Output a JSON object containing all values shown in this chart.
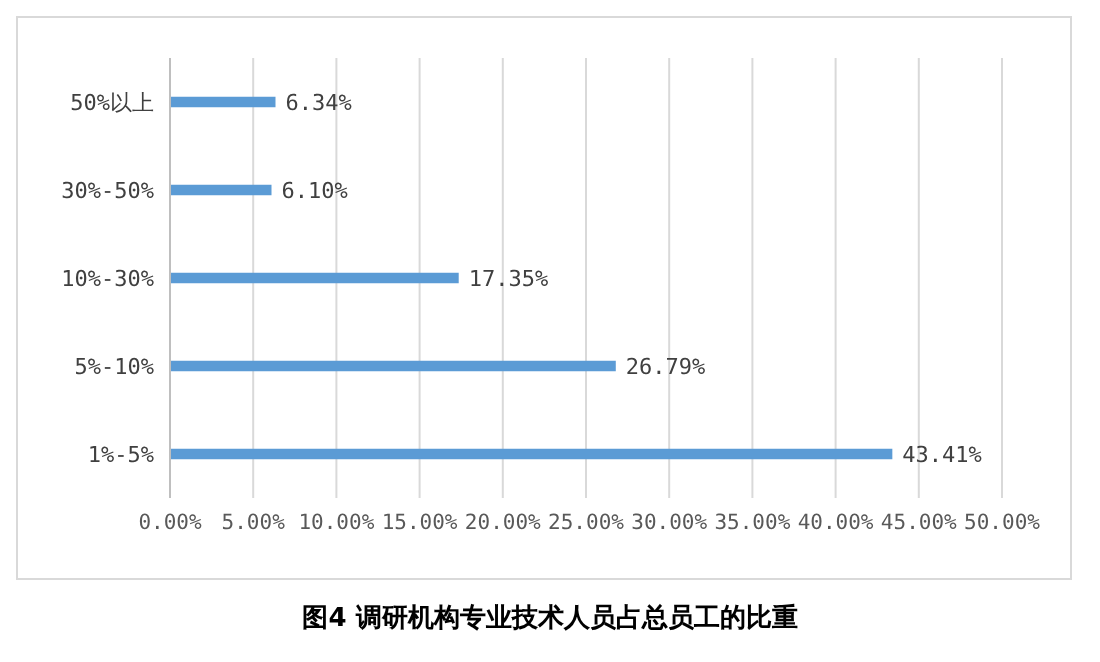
{
  "chart_data": {
    "type": "bar",
    "orientation": "horizontal",
    "title": "图4 调研机构专业技术人员占总员工的比重",
    "categories": [
      "50%以上",
      "30%-50%",
      "10%-30%",
      "5%-10%",
      "1%-5%"
    ],
    "values": [
      6.34,
      6.1,
      17.35,
      26.79,
      43.41
    ],
    "value_labels": [
      "6.34%",
      "6.10%",
      "17.35%",
      "26.79%",
      "43.41%"
    ],
    "color": "#5b9bd5",
    "xlim": [
      0,
      50
    ],
    "xticks": [
      {
        "value": 0,
        "label": "0.00%"
      },
      {
        "value": 5,
        "label": "5.00%"
      },
      {
        "value": 10,
        "label": "10.00%"
      },
      {
        "value": 15,
        "label": "15.00%"
      },
      {
        "value": 20,
        "label": "20.00%"
      },
      {
        "value": 25,
        "label": "25.00%"
      },
      {
        "value": 30,
        "label": "30.00%"
      },
      {
        "value": 35,
        "label": "35.00%"
      },
      {
        "value": 40,
        "label": "40.00%"
      },
      {
        "value": 45,
        "label": "45.00%"
      },
      {
        "value": 50,
        "label": "50.00%"
      }
    ],
    "grid": "x"
  }
}
